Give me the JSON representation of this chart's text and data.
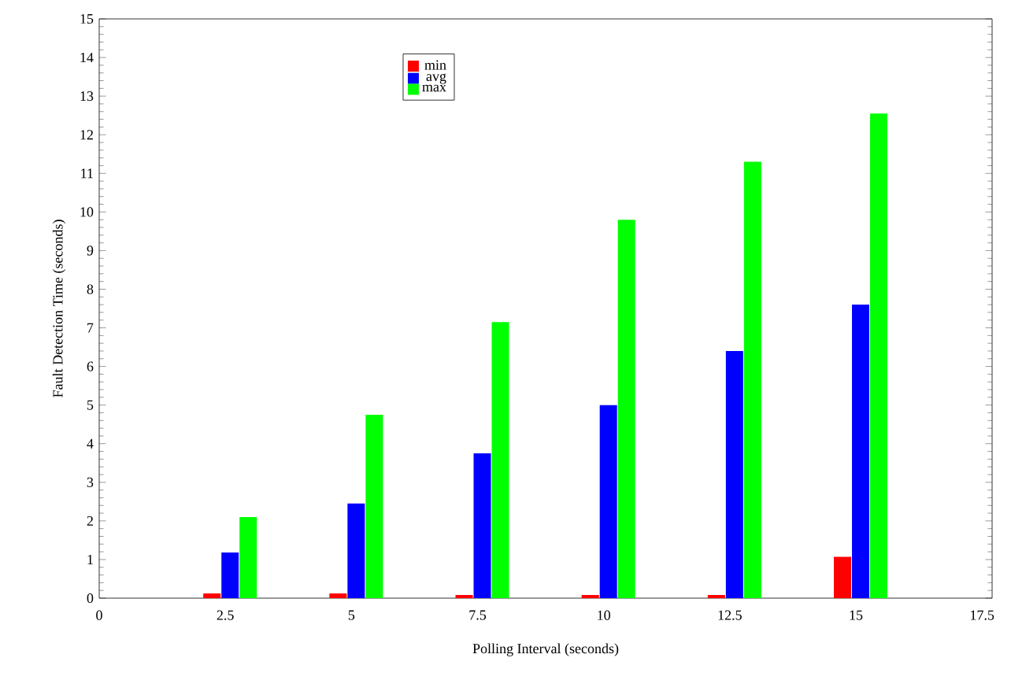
{
  "chart_data": {
    "type": "bar",
    "xlabel": "Polling Interval (seconds)",
    "ylabel": "Fault Detection Time (seconds)",
    "x": [
      2.5,
      5,
      7.5,
      10,
      12.5,
      15
    ],
    "series": [
      {
        "name": "min",
        "color": "#ff0000",
        "values": [
          0.12,
          0.12,
          0.08,
          0.08,
          0.08,
          1.07
        ]
      },
      {
        "name": "avg",
        "color": "#0000ff",
        "values": [
          1.18,
          2.45,
          3.75,
          5.0,
          6.4,
          7.6
        ]
      },
      {
        "name": "max",
        "color": "#00ff00",
        "values": [
          2.1,
          4.75,
          7.15,
          9.8,
          11.3,
          12.55
        ]
      }
    ],
    "xlim": [
      0,
      17.7
    ],
    "xticks": [
      0,
      2.5,
      5,
      7.5,
      10,
      12.5,
      15,
      17.5
    ],
    "ylim": [
      0,
      15
    ],
    "yticks": [
      0,
      1,
      2,
      3,
      4,
      5,
      6,
      7,
      8,
      9,
      10,
      11,
      12,
      13,
      14,
      15
    ],
    "legend": "top left",
    "grid": false
  }
}
